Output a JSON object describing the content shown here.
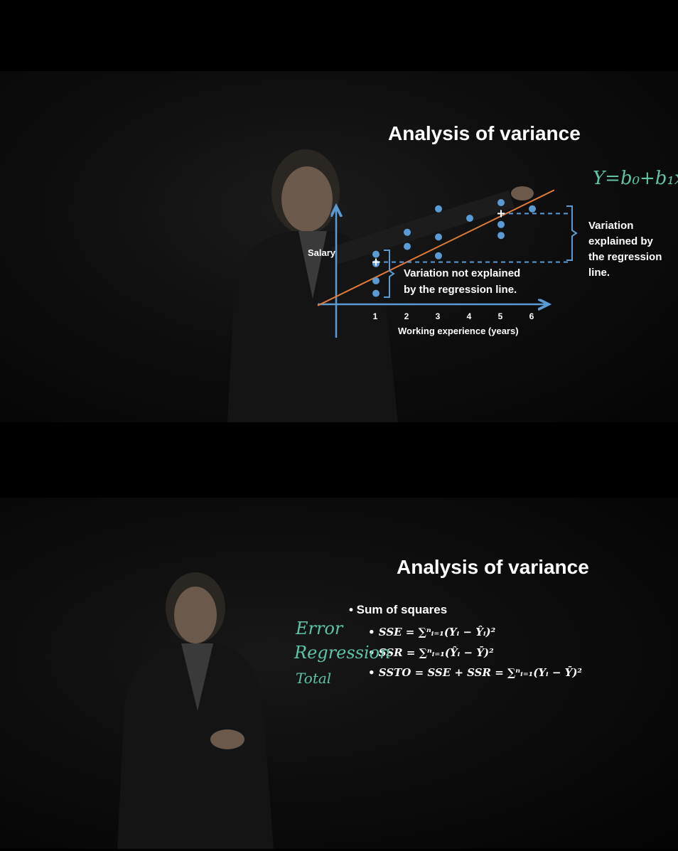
{
  "top_frame": {
    "title": "Analysis of variance",
    "handwritten_formula": "Y=b₀+b₁x",
    "y_axis_label": "Salary",
    "x_axis_label": "Working experience (years)",
    "x_ticks": [
      "1",
      "2",
      "3",
      "4",
      "5",
      "6"
    ],
    "annotation_not_explained": [
      "Variation not explained",
      "by the regression line."
    ],
    "annotation_explained": [
      "Variation",
      "explained by",
      "the regression",
      "line."
    ],
    "colors": {
      "axis": "#5b9bd5",
      "points": "#5b9bd5",
      "regression_line": "#e07b39",
      "brackets": "#5b9bd5",
      "handwriting": "#5fc3a9"
    },
    "chart_data": {
      "type": "scatter",
      "xlabel": "Working experience (years)",
      "ylabel": "Salary",
      "x_ticks": [
        1,
        2,
        3,
        4,
        5,
        6
      ],
      "points": [
        {
          "x": 1,
          "y": 3.2
        },
        {
          "x": 1,
          "y": 2.6
        },
        {
          "x": 1,
          "y": 1.5
        },
        {
          "x": 1,
          "y": 0.7
        },
        {
          "x": 2,
          "y": 4.6
        },
        {
          "x": 2,
          "y": 3.7
        },
        {
          "x": 3,
          "y": 6.1
        },
        {
          "x": 3,
          "y": 4.3
        },
        {
          "x": 3,
          "y": 3.1
        },
        {
          "x": 4,
          "y": 5.5
        },
        {
          "x": 5,
          "y": 6.5
        },
        {
          "x": 5,
          "y": 4.4
        },
        {
          "x": 5,
          "y": 5.1
        },
        {
          "x": 6,
          "y": 6.1
        }
      ],
      "regression_line": {
        "x": [
          0,
          6.7
        ],
        "y": [
          1.1,
          7.3
        ]
      },
      "marked_points": [
        {
          "x": 1,
          "y": 2.7
        },
        {
          "x": 5,
          "y": 5.8
        }
      ],
      "mean_y": 2.7,
      "xlim": [
        -0.6,
        6.7
      ],
      "ylim": [
        -2.1,
        6.9
      ]
    }
  },
  "bottom_frame": {
    "title": "Analysis of variance",
    "bullet_heading": "• Sum of squares",
    "formulas": [
      "• SSE = ∑ⁿᵢ₌₁(Yᵢ − Ŷᵢ)²",
      "• SSR = ∑ⁿᵢ₌₁(Ŷᵢ − Ȳ)²",
      "• SSTO = SSE + SSR = ∑ⁿᵢ₌₁(Yᵢ − Ȳ)²"
    ],
    "handwritten_labels": [
      "Error",
      "Regression",
      "Total"
    ]
  }
}
